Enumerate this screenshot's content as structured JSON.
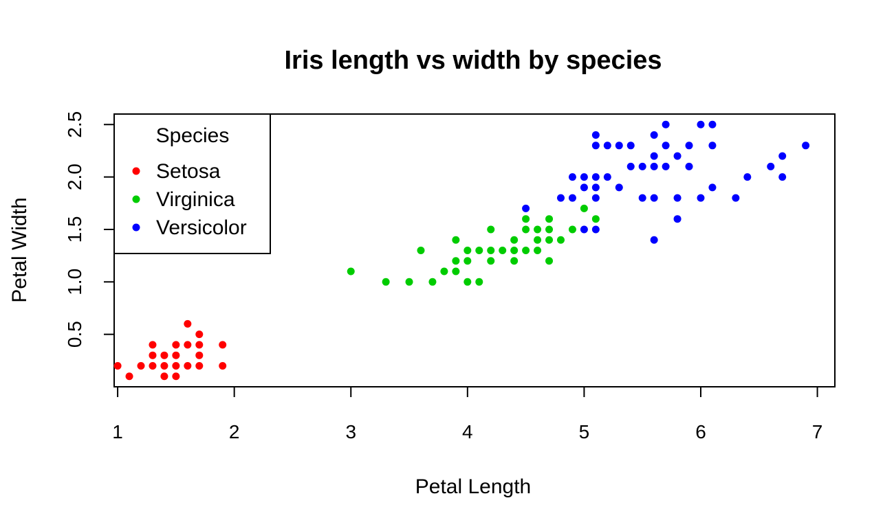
{
  "chart_data": {
    "type": "scatter",
    "title": "Iris length vs width by species",
    "xlabel": "Petal Length",
    "ylabel": "Petal Width",
    "xlim": [
      0.97,
      7.15
    ],
    "ylim": [
      0.0,
      2.6
    ],
    "xticks": [
      1,
      2,
      3,
      4,
      5,
      6,
      7
    ],
    "yticks": [
      0.5,
      1.0,
      1.5,
      2.0,
      2.5
    ],
    "ytick_labels": [
      "0.5",
      "1.0",
      "1.5",
      "2.0",
      "2.5"
    ],
    "grid": false,
    "legend": {
      "title": "Species",
      "position": "top-left"
    },
    "series": [
      {
        "name": "Setosa",
        "color": "#ff0000",
        "points": [
          [
            1.0,
            0.2
          ],
          [
            1.1,
            0.1
          ],
          [
            1.2,
            0.2
          ],
          [
            1.3,
            0.2
          ],
          [
            1.3,
            0.3
          ],
          [
            1.3,
            0.4
          ],
          [
            1.4,
            0.1
          ],
          [
            1.4,
            0.2
          ],
          [
            1.4,
            0.3
          ],
          [
            1.5,
            0.1
          ],
          [
            1.5,
            0.2
          ],
          [
            1.5,
            0.3
          ],
          [
            1.5,
            0.4
          ],
          [
            1.6,
            0.2
          ],
          [
            1.6,
            0.4
          ],
          [
            1.6,
            0.6
          ],
          [
            1.7,
            0.2
          ],
          [
            1.7,
            0.3
          ],
          [
            1.7,
            0.4
          ],
          [
            1.7,
            0.5
          ],
          [
            1.9,
            0.2
          ],
          [
            1.9,
            0.4
          ]
        ]
      },
      {
        "name": "Virginica",
        "color": "#00cc00",
        "points": [
          [
            3.0,
            1.1
          ],
          [
            3.3,
            1.0
          ],
          [
            3.5,
            1.0
          ],
          [
            3.6,
            1.3
          ],
          [
            3.7,
            1.0
          ],
          [
            3.8,
            1.1
          ],
          [
            3.9,
            1.1
          ],
          [
            3.9,
            1.2
          ],
          [
            3.9,
            1.4
          ],
          [
            4.0,
            1.0
          ],
          [
            4.0,
            1.2
          ],
          [
            4.0,
            1.3
          ],
          [
            4.1,
            1.0
          ],
          [
            4.1,
            1.3
          ],
          [
            4.2,
            1.2
          ],
          [
            4.2,
            1.3
          ],
          [
            4.2,
            1.5
          ],
          [
            4.3,
            1.3
          ],
          [
            4.4,
            1.2
          ],
          [
            4.4,
            1.3
          ],
          [
            4.4,
            1.4
          ],
          [
            4.5,
            1.3
          ],
          [
            4.5,
            1.5
          ],
          [
            4.5,
            1.6
          ],
          [
            4.6,
            1.3
          ],
          [
            4.6,
            1.4
          ],
          [
            4.6,
            1.5
          ],
          [
            4.7,
            1.2
          ],
          [
            4.7,
            1.4
          ],
          [
            4.7,
            1.5
          ],
          [
            4.7,
            1.6
          ],
          [
            4.8,
            1.4
          ],
          [
            4.9,
            1.5
          ],
          [
            5.0,
            1.7
          ],
          [
            5.1,
            1.6
          ]
        ]
      },
      {
        "name": "Versicolor",
        "color": "#0000ff",
        "points": [
          [
            4.5,
            1.7
          ],
          [
            4.8,
            1.8
          ],
          [
            4.9,
            1.8
          ],
          [
            4.9,
            2.0
          ],
          [
            5.0,
            1.5
          ],
          [
            5.0,
            1.9
          ],
          [
            5.0,
            2.0
          ],
          [
            5.1,
            1.5
          ],
          [
            5.1,
            1.8
          ],
          [
            5.1,
            1.9
          ],
          [
            5.1,
            2.0
          ],
          [
            5.1,
            2.3
          ],
          [
            5.1,
            2.4
          ],
          [
            5.2,
            2.0
          ],
          [
            5.2,
            2.3
          ],
          [
            5.3,
            1.9
          ],
          [
            5.3,
            2.3
          ],
          [
            5.4,
            2.1
          ],
          [
            5.4,
            2.3
          ],
          [
            5.5,
            1.8
          ],
          [
            5.5,
            2.1
          ],
          [
            5.6,
            1.4
          ],
          [
            5.6,
            1.8
          ],
          [
            5.6,
            2.1
          ],
          [
            5.6,
            2.2
          ],
          [
            5.6,
            2.4
          ],
          [
            5.7,
            2.1
          ],
          [
            5.7,
            2.3
          ],
          [
            5.7,
            2.5
          ],
          [
            5.8,
            1.6
          ],
          [
            5.8,
            1.8
          ],
          [
            5.8,
            2.2
          ],
          [
            5.9,
            2.1
          ],
          [
            5.9,
            2.3
          ],
          [
            6.0,
            1.8
          ],
          [
            6.0,
            2.5
          ],
          [
            6.1,
            1.9
          ],
          [
            6.1,
            2.3
          ],
          [
            6.1,
            2.5
          ],
          [
            6.3,
            1.8
          ],
          [
            6.4,
            2.0
          ],
          [
            6.6,
            2.1
          ],
          [
            6.7,
            2.0
          ],
          [
            6.7,
            2.2
          ],
          [
            6.9,
            2.3
          ]
        ]
      }
    ]
  }
}
